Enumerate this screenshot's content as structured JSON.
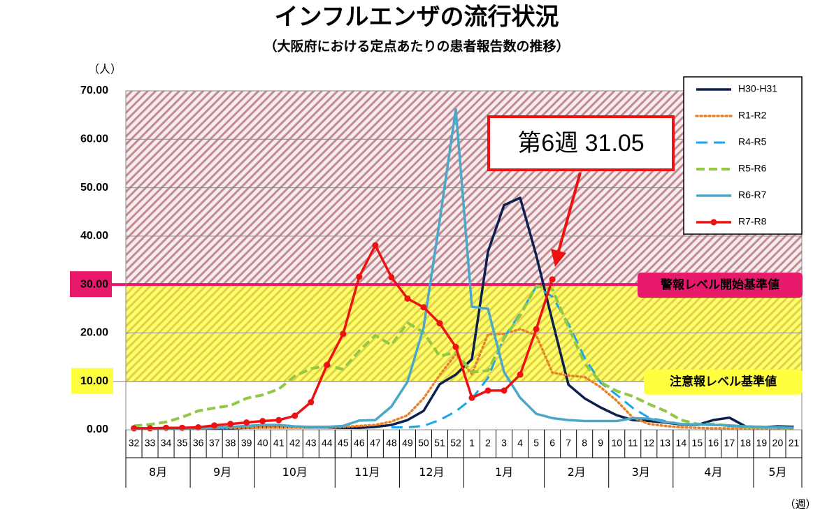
{
  "chart_data": {
    "type": "line",
    "title": "インフルエンザの流行状況",
    "subtitle": "（大阪府における定点あたりの患者報告数の推移）",
    "y_label": "（人）",
    "x_label": "（週）",
    "categories": [
      "32",
      "33",
      "34",
      "35",
      "36",
      "37",
      "38",
      "39",
      "40",
      "41",
      "42",
      "43",
      "44",
      "45",
      "46",
      "47",
      "48",
      "49",
      "50",
      "51",
      "52",
      "1",
      "2",
      "3",
      "4",
      "5",
      "6",
      "7",
      "8",
      "9",
      "10",
      "11",
      "12",
      "13",
      "14",
      "15",
      "16",
      "17",
      "18",
      "19",
      "20",
      "21"
    ],
    "month_groups": [
      {
        "label": "8月",
        "span": 4
      },
      {
        "label": "9月",
        "span": 4
      },
      {
        "label": "10月",
        "span": 5
      },
      {
        "label": "11月",
        "span": 4
      },
      {
        "label": "12月",
        "span": 4
      },
      {
        "label": "1月",
        "span": 5
      },
      {
        "label": "2月",
        "span": 4
      },
      {
        "label": "3月",
        "span": 4
      },
      {
        "label": "4月",
        "span": 5
      },
      {
        "label": "5月",
        "span": 3
      }
    ],
    "ylim": [
      0,
      70
    ],
    "yticks": [
      {
        "value": 0,
        "label": "0.00"
      },
      {
        "value": 10,
        "label": "10.00"
      },
      {
        "value": 20,
        "label": "20.00"
      },
      {
        "value": 30,
        "label": "30.00"
      },
      {
        "value": 40,
        "label": "40.00"
      },
      {
        "value": 50,
        "label": "50.00"
      },
      {
        "value": 60,
        "label": "60.00"
      },
      {
        "value": 70,
        "label": "70.00"
      }
    ],
    "grid": true,
    "legend": "top-right",
    "thresholds": [
      {
        "value": 30,
        "label": "警報レベル開始基準値",
        "color": "#e8196a"
      },
      {
        "value": 10,
        "label": "注意報レベル基準値",
        "color": "#ffff40"
      }
    ],
    "annotation": {
      "text": "第6週 31.05",
      "color": "#ee1111"
    },
    "series": [
      {
        "name": "H30-H31",
        "color": "#0d1f4f",
        "style": "solid",
        "values": [
          0.2,
          0.2,
          0.2,
          0.2,
          0.2,
          0.3,
          0.3,
          0.4,
          0.5,
          0.5,
          0.5,
          0.5,
          0.5,
          0.4,
          0.4,
          0.6,
          1.0,
          2.0,
          3.9,
          9.4,
          11.4,
          14.6,
          36.8,
          46.4,
          47.9,
          36.0,
          22.5,
          9.3,
          6.5,
          4.6,
          3.0,
          2.0,
          1.8,
          1.5,
          1.1,
          1.0,
          2.0,
          2.5,
          0.7,
          0.5,
          0.7,
          0.6
        ]
      },
      {
        "name": "R1-R2",
        "color": "#e8822a",
        "style": "dotted",
        "values": [
          0.3,
          0.3,
          0.3,
          0.3,
          0.3,
          0.4,
          0.4,
          0.4,
          0.5,
          0.5,
          0.5,
          0.6,
          0.6,
          0.6,
          0.8,
          1.0,
          1.7,
          3.0,
          6.5,
          11.3,
          15.6,
          11.5,
          19.7,
          19.8,
          20.8,
          19.5,
          11.8,
          11.2,
          10.9,
          8.8,
          6.0,
          2.5,
          1.2,
          0.8,
          0.5,
          0.4,
          0.3,
          0.3,
          0.3,
          0.3,
          0.3,
          0.2
        ]
      },
      {
        "name": "R4-R5",
        "color": "#1aa6e8",
        "style": "dashed",
        "values": [
          null,
          null,
          null,
          null,
          null,
          null,
          null,
          null,
          null,
          null,
          null,
          null,
          null,
          null,
          null,
          null,
          0.5,
          0.5,
          0.8,
          2.0,
          3.8,
          6.4,
          10.7,
          19.1,
          24.0,
          29.6,
          27.5,
          21.9,
          14.9,
          9.7,
          7.2,
          4.5,
          2.5,
          1.8,
          1.2,
          1.0,
          1.0,
          0.8,
          0.6,
          0.5,
          0.4,
          0.3
        ]
      },
      {
        "name": "R5-R6",
        "color": "#92c846",
        "style": "dashed-wide",
        "values": [
          0.8,
          1.1,
          1.6,
          2.6,
          3.9,
          4.5,
          5.0,
          6.5,
          7.2,
          8.4,
          11.1,
          12.6,
          13.3,
          12.5,
          16.3,
          19.5,
          17.5,
          22.1,
          20.1,
          15.2,
          16.0,
          11.9,
          12.2,
          18.9,
          23.6,
          29.7,
          29.0,
          21.2,
          13.7,
          9.8,
          8.0,
          6.9,
          5.3,
          3.9,
          2.0,
          1.2,
          1.2,
          0.8,
          0.6,
          0.6,
          0.4,
          0.3
        ]
      },
      {
        "name": "R6-R7",
        "color": "#4ba8c8",
        "style": "solid",
        "values": [
          0.2,
          0.2,
          0.2,
          0.3,
          0.3,
          0.4,
          0.6,
          0.8,
          1.0,
          1.0,
          0.7,
          0.6,
          0.6,
          0.8,
          1.9,
          2.0,
          4.8,
          9.9,
          21.1,
          43.2,
          66.2,
          25.4,
          25.0,
          11.9,
          6.6,
          3.3,
          2.4,
          2.0,
          1.8,
          1.8,
          1.8,
          2.4,
          2.3,
          1.6,
          1.2,
          1.1,
          1.0,
          0.9,
          0.7,
          0.6,
          0.5,
          0.4
        ]
      },
      {
        "name": "R7-R8",
        "color": "#ee1111",
        "style": "marker",
        "values": [
          0.3,
          0.3,
          0.4,
          0.4,
          0.5,
          0.9,
          1.2,
          1.5,
          1.8,
          2.0,
          2.9,
          5.7,
          13.4,
          19.8,
          31.6,
          38.1,
          31.5,
          27.1,
          25.3,
          22.0,
          17.1,
          6.6,
          8.1,
          8.1,
          11.4,
          20.8,
          31.05,
          null,
          null,
          null,
          null,
          null,
          null,
          null,
          null,
          null,
          null,
          null,
          null,
          null,
          null,
          null
        ]
      }
    ]
  }
}
